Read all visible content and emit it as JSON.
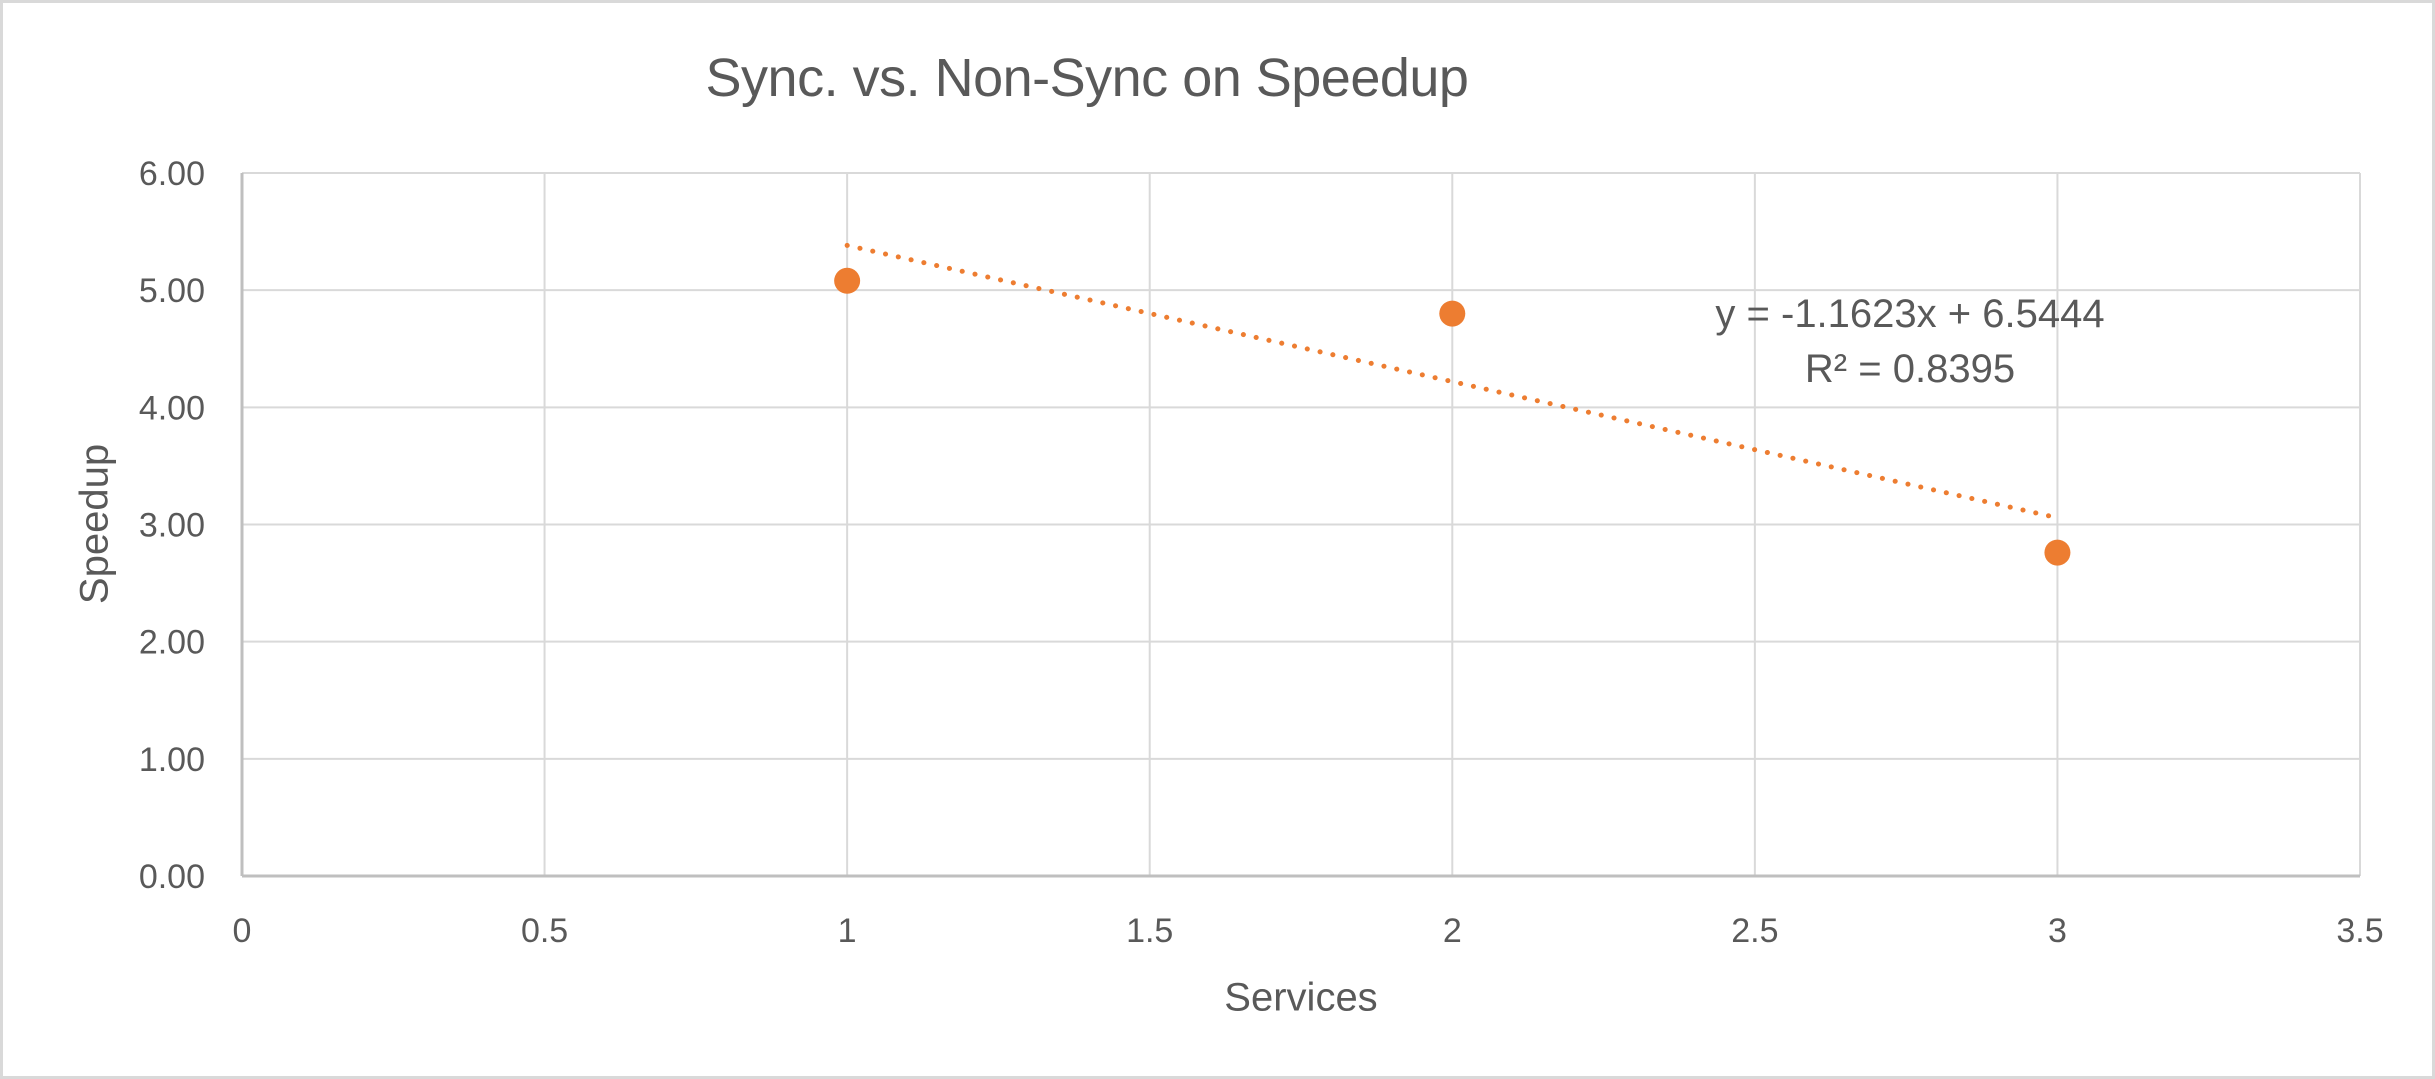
{
  "chart_data": {
    "type": "scatter",
    "title": "Sync. vs. Non-Sync on Speedup",
    "xlabel": "Services",
    "ylabel": "Speedup",
    "series": [
      {
        "name": "Speedup",
        "points": [
          {
            "x": 1,
            "y": 5.08
          },
          {
            "x": 2,
            "y": 4.8
          },
          {
            "x": 3,
            "y": 2.76
          }
        ]
      }
    ],
    "xlim": [
      0,
      3.5
    ],
    "ylim": [
      0,
      6
    ],
    "x_tick_labels": [
      "0",
      "0.5",
      "1",
      "1.5",
      "2",
      "2.5",
      "3",
      "3.5"
    ],
    "y_tick_labels": [
      "0.00",
      "1.00",
      "2.00",
      "3.00",
      "4.00",
      "5.00",
      "6.00"
    ],
    "grid": true,
    "legend": "none",
    "trendline": {
      "equation": "y = -1.1623x + 6.5444",
      "r_squared_label": "R² = 0.8395",
      "slope": -1.1623,
      "intercept": 6.5444,
      "x_start": 1,
      "x_end": 3,
      "style": "dotted"
    },
    "colors": {
      "marker": "#ED7D31",
      "trendline": "#ED7D31",
      "gridline": "#D9D9D9",
      "axis_line": "#BFBFBF",
      "text": "#595959"
    }
  }
}
